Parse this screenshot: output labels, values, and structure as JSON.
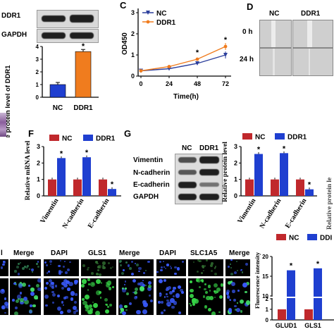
{
  "panels": {
    "A": {
      "blot_labels": [
        "DDR1",
        "GAPDH"
      ],
      "lanes": [
        "NC",
        "DDR1"
      ],
      "chart_data": {
        "type": "bar",
        "ylabel": "Relative protein level of DDR1",
        "categories": [
          "NC",
          "DDR1"
        ],
        "values": [
          1.0,
          3.6
        ],
        "ylim": [
          0,
          4
        ],
        "yticks": [
          "0",
          "1",
          "2",
          "3",
          "4"
        ],
        "colors": [
          "#1f3fd0",
          "#f07c1e"
        ],
        "significance": [
          "",
          "*"
        ]
      }
    },
    "C": {
      "letter": "C",
      "chart_data": {
        "type": "line",
        "ylabel": "OD450",
        "xlabel": "Time(h)",
        "x": [
          0,
          24,
          48,
          72
        ],
        "xticks": [
          "0",
          "24",
          "48",
          "72"
        ],
        "yticks": [
          "0",
          "1",
          "2",
          "3"
        ],
        "ylim": [
          0,
          3.2
        ],
        "series": [
          {
            "name": "NC",
            "color": "#2c3f9c",
            "values": [
              0.25,
              0.35,
              0.6,
              1.0
            ]
          },
          {
            "name": "DDR1",
            "color": "#f07c1e",
            "values": [
              0.25,
              0.45,
              0.8,
              1.4
            ]
          }
        ],
        "significance": [
          "",
          "",
          "*",
          "*"
        ]
      }
    },
    "D": {
      "letter": "D",
      "columns": [
        "NC",
        "DDR1"
      ],
      "rows": [
        "0 h",
        "24 h"
      ]
    },
    "F": {
      "letter": "F",
      "chart_data": {
        "type": "bar",
        "ylabel": "Relative mRNA level",
        "categories": [
          "Vimentin",
          "N-cadherin",
          "E-cadherin"
        ],
        "series": [
          {
            "name": "NC",
            "color": "#c0282c",
            "values": [
              1.0,
              1.0,
              1.0
            ]
          },
          {
            "name": "DDR1",
            "color": "#1f3fd0",
            "values": [
              2.3,
              2.35,
              0.42
            ]
          }
        ],
        "ylim": [
          0,
          3
        ],
        "yticks": [
          "0",
          "1",
          "2",
          "3"
        ],
        "significance": [
          "*",
          "*",
          "*"
        ]
      }
    },
    "G": {
      "letter": "G",
      "lanes": [
        "NC",
        "DDR1"
      ],
      "blot_labels": [
        "Vimentin",
        "N-cadherin",
        "E-cadherin",
        "GAPDH"
      ],
      "chart_data": {
        "type": "bar",
        "ylabel": "Relative protein level",
        "categories": [
          "Vimentin",
          "N-cadherin",
          "E-cadherin"
        ],
        "series": [
          {
            "name": "NC",
            "color": "#c0282c",
            "values": [
              1.0,
              1.0,
              1.0
            ]
          },
          {
            "name": "DDR1",
            "color": "#1f3fd0",
            "values": [
              2.55,
              2.6,
              0.4
            ]
          }
        ],
        "ylim": [
          0,
          3
        ],
        "yticks": [
          "0",
          "1",
          "2",
          "3"
        ],
        "significance": [
          "*",
          "*",
          "*"
        ]
      }
    },
    "bottom": {
      "header_left": [
        "l",
        "Merge"
      ],
      "header_mid": [
        "DAPI",
        "GLS1",
        "Merge"
      ],
      "header_right": [
        "DAPI",
        "SLC1A5",
        "Merge"
      ],
      "chart_data": {
        "type": "bar",
        "ylabel": "Fluorescence intensity",
        "categories": [
          "GLUD1",
          "GLS1"
        ],
        "series": [
          {
            "name": "NC",
            "color": "#c0282c",
            "values": [
              1.0,
              1.0
            ]
          },
          {
            "name": "DDI",
            "color": "#1f3fd0",
            "values": [
              16.5,
              17.0
            ]
          }
        ],
        "yticks": [
          "0",
          "1",
          "2",
          "10",
          "15",
          "20"
        ],
        "significance": [
          "*",
          "*"
        ]
      }
    },
    "right_edge_label": "Relative protein le"
  }
}
